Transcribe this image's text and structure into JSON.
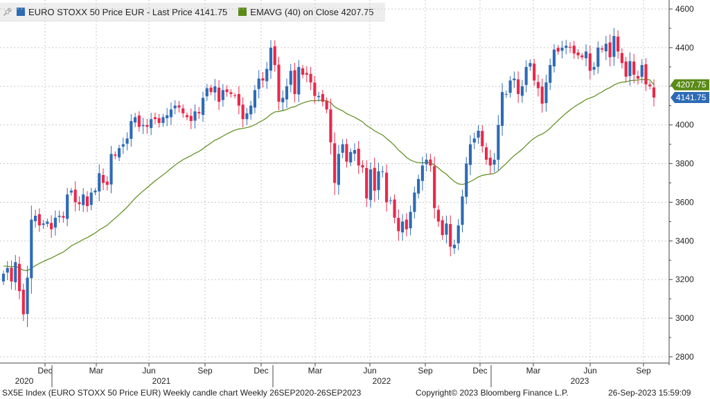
{
  "legend": {
    "pin_icon": "pin-icon",
    "series1_text": "EURO STOXX 50 Price EUR - Last Price 4141.75",
    "series1_color": "#2e6bb5",
    "series2_text": "EMAVG (40)  on Close 4207.75",
    "series2_color": "#5a8a18"
  },
  "footer": {
    "left": "SX5E Index (EURO STOXX 50 Price EUR) Weekly candle chart  Weekly 26SEP2020-26SEP2023",
    "center": "Copyright© 2023 Bloomberg Finance L.P.",
    "right": "26-Sep-2023 15:59:09"
  },
  "colors": {
    "up": "#2e6bb5",
    "down": "#e8294a",
    "ema": "#5a8a18",
    "grid": "#c8c8c8",
    "last_tag_bg": "#2e6bb5",
    "ema_tag_bg": "#5a8a18"
  },
  "chart_data": {
    "type": "candlestick",
    "title": "EURO STOXX 50 Price EUR",
    "ylim": [
      2760,
      4640
    ],
    "yticks": [
      2800,
      3000,
      3200,
      3400,
      3600,
      3800,
      4000,
      4200,
      4400,
      4600
    ],
    "x_month_ticks": [
      "Dec",
      "Mar",
      "Jun",
      "Sep",
      "Dec",
      "Mar",
      "Jun",
      "Sep",
      "Dec",
      "Mar",
      "Jun",
      "Sep"
    ],
    "x_year_labels": [
      "2020",
      "2021",
      "2022",
      "2023"
    ],
    "last_price": "4141.75",
    "ema_last": "4207.75",
    "weekly_closes": [
      3230,
      3260,
      3190,
      3290,
      3140,
      3020,
      3210,
      3510,
      3530,
      3480,
      3490,
      3500,
      3460,
      3520,
      3530,
      3520,
      3640,
      3660,
      3600,
      3590,
      3640,
      3580,
      3650,
      3660,
      3750,
      3700,
      3690,
      3850,
      3840,
      3880,
      3900,
      3930,
      4020,
      4040,
      3990,
      4000,
      3990,
      4030,
      4030,
      4010,
      4040,
      4050,
      4080,
      4100,
      4090,
      4060,
      4040,
      4020,
      4070,
      4060,
      4140,
      4190,
      4170,
      4200,
      4120,
      4180,
      4170,
      4160,
      4150,
      4100,
      4030,
      4060,
      4100,
      4180,
      4240,
      4230,
      4290,
      4400,
      4310,
      4120,
      4140,
      4200,
      4280,
      4160,
      4300,
      4260,
      4260,
      4220,
      4150,
      4150,
      4120,
      4080,
      3910,
      3700,
      3850,
      3900,
      3810,
      3860,
      3870,
      3790,
      3780,
      3620,
      3770,
      3660,
      3760,
      3760,
      3600,
      3610,
      3520,
      3450,
      3500,
      3460,
      3550,
      3650,
      3720,
      3790,
      3820,
      3790,
      3570,
      3500,
      3430,
      3490,
      3370,
      3380,
      3480,
      3630,
      3800,
      3900,
      3930,
      3970,
      3890,
      3820,
      3790,
      3820,
      4000,
      4170,
      4160,
      4230,
      4240,
      4160,
      4200,
      4300,
      4320,
      4230,
      4190,
      4110,
      4220,
      4310,
      4390,
      4380,
      4400,
      4410,
      4400,
      4370,
      4360,
      4350,
      4380,
      4280,
      4300,
      4400,
      4390,
      4420,
      4350,
      4460,
      4380,
      4320,
      4250,
      4330,
      4260,
      4240,
      4310,
      4210,
      4200,
      4141.75
    ],
    "ema_40": [
      3270,
      3268,
      3266,
      3268,
      3260,
      3248,
      3246,
      3259,
      3272,
      3283,
      3293,
      3303,
      3311,
      3322,
      3333,
      3342,
      3358,
      3374,
      3385,
      3395,
      3408,
      3417,
      3429,
      3441,
      3457,
      3469,
      3481,
      3500,
      3518,
      3536,
      3555,
      3575,
      3598,
      3621,
      3640,
      3658,
      3675,
      3693,
      3711,
      3726,
      3742,
      3758,
      3775,
      3792,
      3807,
      3820,
      3831,
      3841,
      3853,
      3863,
      3877,
      3893,
      3906,
      3921,
      3930,
      3942,
      3954,
      3964,
      3973,
      3979,
      3982,
      3986,
      3992,
      4001,
      4013,
      4024,
      4037,
      4055,
      4067,
      4070,
      4074,
      4080,
      4090,
      4094,
      4105,
      4113,
      4120,
      4125,
      4126,
      4127,
      4127,
      4125,
      4115,
      4094,
      4082,
      4073,
      4059,
      4049,
      4040,
      4028,
      4016,
      3996,
      3985,
      3969,
      3958,
      3948,
      3930,
      3913,
      3893,
      3870,
      3852,
      3832,
      3818,
      3810,
      3805,
      3804,
      3805,
      3804,
      3792,
      3777,
      3759,
      3745,
      3725,
      3707,
      3695,
      3692,
      3697,
      3707,
      3718,
      3731,
      3739,
      3743,
      3745,
      3749,
      3762,
      3782,
      3801,
      3822,
      3842,
      3857,
      3874,
      3895,
      3915,
      3931,
      3944,
      3953,
      3966,
      3983,
      4004,
      4023,
      4043,
      4061,
      4078,
      4093,
      4106,
      4118,
      4132,
      4139,
      4147,
      4160,
      4171,
      4184,
      4193,
      4207,
      4216,
      4221,
      4223,
      4229,
      4231,
      4232,
      4236,
      4235,
      4233,
      4207.75
    ]
  }
}
